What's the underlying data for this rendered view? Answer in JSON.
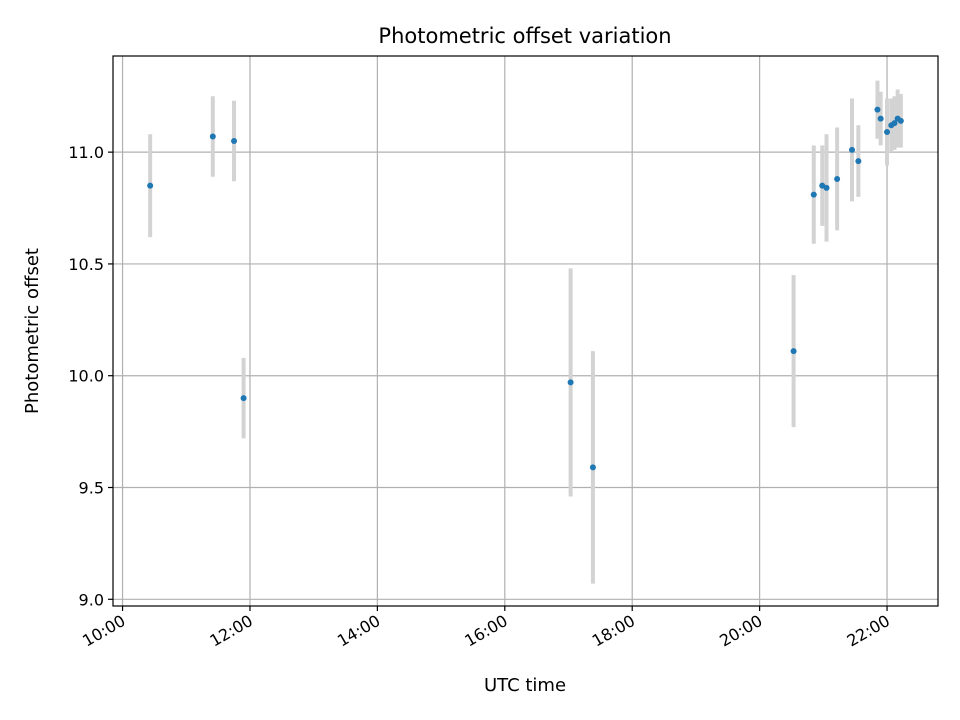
{
  "chart_data": {
    "type": "scatter",
    "title": "Photometric offset variation",
    "xlabel": "UTC time",
    "ylabel": "Photometric offset",
    "x_tick_labels": [
      "10:00",
      "12:00",
      "14:00",
      "16:00",
      "18:00",
      "20:00",
      "22:00"
    ],
    "y_tick_labels": [
      "9.0",
      "9.5",
      "10.0",
      "10.5",
      "11.0"
    ],
    "xlim": [
      "09:51",
      "22:48"
    ],
    "ylim": [
      8.97,
      11.43
    ],
    "grid": true,
    "colors": {
      "points": "#1f77b4",
      "errorbars": "#d3d3d3",
      "grid": "#b0b0b0"
    },
    "points": [
      {
        "x": "10:26",
        "y": 10.85,
        "yerr": 0.23
      },
      {
        "x": "11:25",
        "y": 11.07,
        "yerr": 0.18
      },
      {
        "x": "11:45",
        "y": 11.05,
        "yerr": 0.18
      },
      {
        "x": "11:54",
        "y": 9.9,
        "yerr": 0.18
      },
      {
        "x": "17:02",
        "y": 9.97,
        "yerr": 0.51
      },
      {
        "x": "17:23",
        "y": 9.59,
        "yerr": 0.52
      },
      {
        "x": "20:32",
        "y": 10.11,
        "yerr": 0.34
      },
      {
        "x": "20:51",
        "y": 10.81,
        "yerr": 0.22
      },
      {
        "x": "20:59",
        "y": 10.85,
        "yerr": 0.18
      },
      {
        "x": "21:03",
        "y": 10.84,
        "yerr": 0.24
      },
      {
        "x": "21:13",
        "y": 10.88,
        "yerr": 0.23
      },
      {
        "x": "21:27",
        "y": 11.01,
        "yerr": 0.23
      },
      {
        "x": "21:33",
        "y": 10.96,
        "yerr": 0.16
      },
      {
        "x": "21:51",
        "y": 11.19,
        "yerr": 0.13
      },
      {
        "x": "21:54",
        "y": 11.15,
        "yerr": 0.12
      },
      {
        "x": "22:00",
        "y": 11.09,
        "yerr": 0.15
      },
      {
        "x": "22:04",
        "y": 11.12,
        "yerr": 0.12
      },
      {
        "x": "22:07",
        "y": 11.13,
        "yerr": 0.12
      },
      {
        "x": "22:10",
        "y": 11.15,
        "yerr": 0.13
      },
      {
        "x": "22:13",
        "y": 11.14,
        "yerr": 0.12
      }
    ]
  }
}
